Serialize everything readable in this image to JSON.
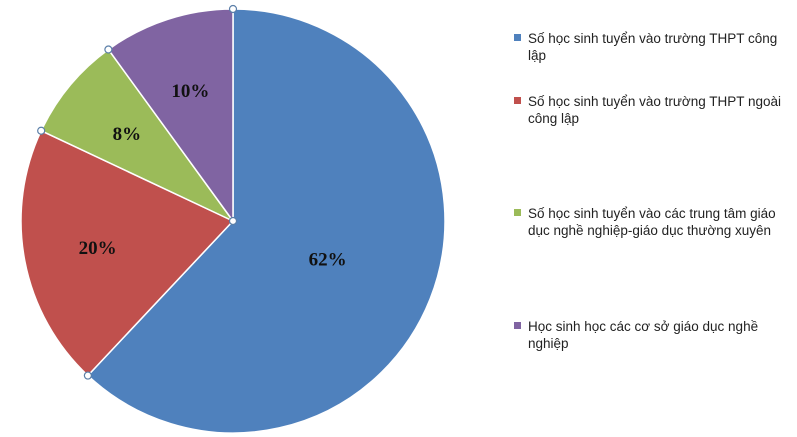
{
  "chart_data": {
    "type": "pie",
    "title": "",
    "legend_position": "right",
    "slices": [
      {
        "name": "Số học sinh tuyển vào trường THPT công lập",
        "value": 62,
        "label": "62%",
        "color": "#4F81BD"
      },
      {
        "name": "Số học sinh tuyển vào trường THPT ngoài công lập",
        "value": 20,
        "label": "20%",
        "color": "#C0504D"
      },
      {
        "name": "Số học sinh tuyển vào các trung tâm giáo dục nghề nghiệp-giáo dục thường xuyên",
        "value": 8,
        "label": "8%",
        "color": "#9BBB59"
      },
      {
        "name": "Học sinh học các cơ sở giáo dục nghề nghiệp",
        "value": 10,
        "label": "10%",
        "color": "#8064A2"
      }
    ]
  }
}
